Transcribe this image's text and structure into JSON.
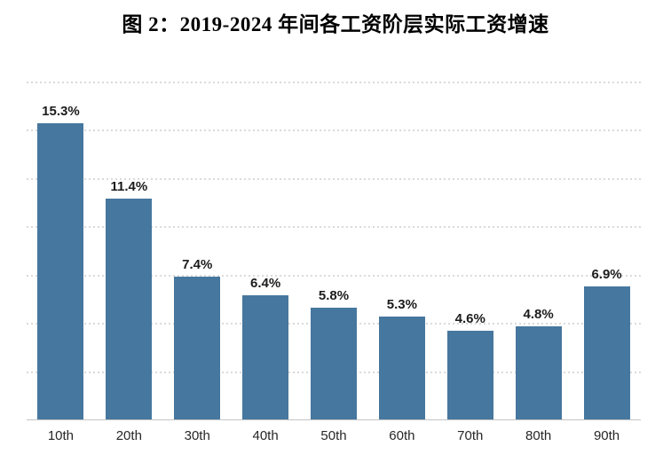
{
  "title": "图 2：2019-2024 年间各工资阶层实际工资增速",
  "chart_data": {
    "type": "bar",
    "title": "图 2：2019-2024 年间各工资阶层实际工资增速",
    "categories": [
      "10th",
      "20th",
      "30th",
      "40th",
      "50th",
      "60th",
      "70th",
      "80th",
      "90th"
    ],
    "values": [
      15.3,
      11.4,
      7.4,
      6.4,
      5.8,
      5.3,
      4.6,
      4.8,
      6.9
    ],
    "value_labels": [
      "15.3%",
      "11.4%",
      "7.4%",
      "6.4%",
      "5.8%",
      "5.3%",
      "4.6%",
      "4.8%",
      "6.9%"
    ],
    "xlabel": "",
    "ylabel": "",
    "ylim": [
      0,
      17.5
    ],
    "grid_interval": 2.5,
    "grid_on": true,
    "legend": "none",
    "bar_color": "#46779E",
    "gridline_color": "#dadada",
    "baseline_color": "#c4c4c4",
    "label_color": "#1c1c1c",
    "tick_label_color": "#262626"
  }
}
